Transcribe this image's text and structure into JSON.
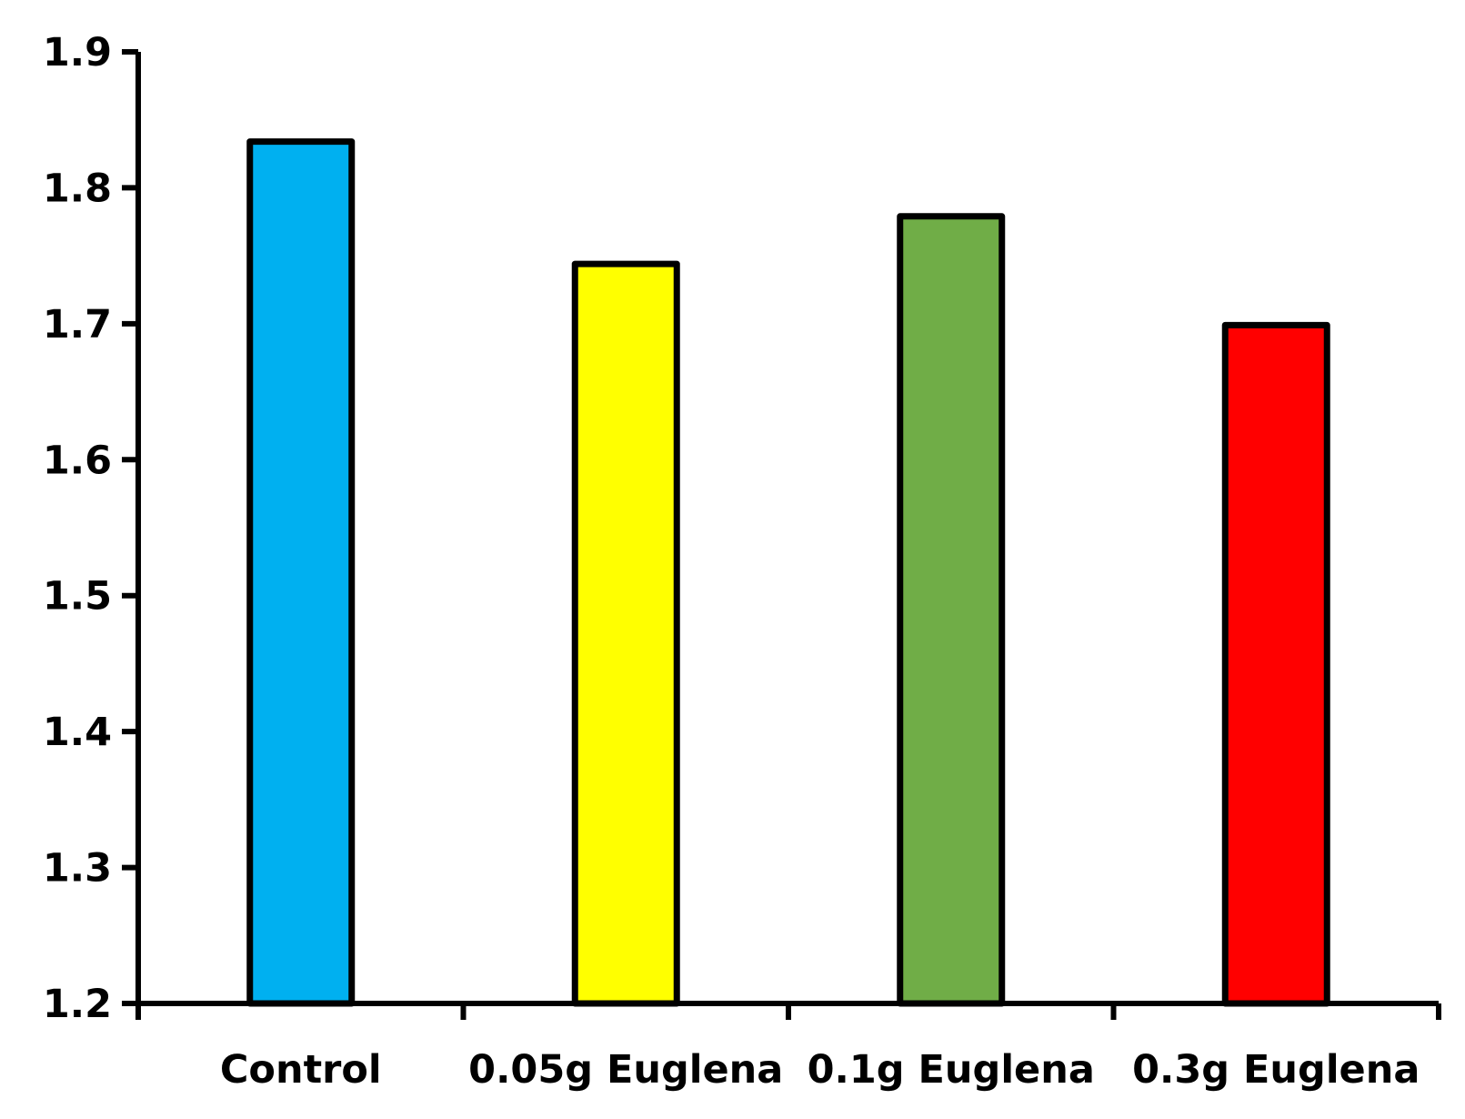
{
  "chart_data": {
    "type": "bar",
    "categories": [
      "Control",
      "0.05g Euglena",
      "0.1g Euglena",
      "0.3g Euglena"
    ],
    "values": [
      1.834,
      1.744,
      1.779,
      1.699
    ],
    "colors": [
      "#00B0F0",
      "#FFFF00",
      "#70AD47",
      "#FF0000"
    ],
    "bar_border_color": "#000000",
    "ylim": [
      1.2,
      1.9
    ],
    "yticks": [
      "1.2",
      "1.3",
      "1.4",
      "1.5",
      "1.6",
      "1.7",
      "1.8",
      "1.9"
    ],
    "title": "",
    "xlabel": "",
    "ylabel": "",
    "grid": false,
    "legend": "none"
  }
}
